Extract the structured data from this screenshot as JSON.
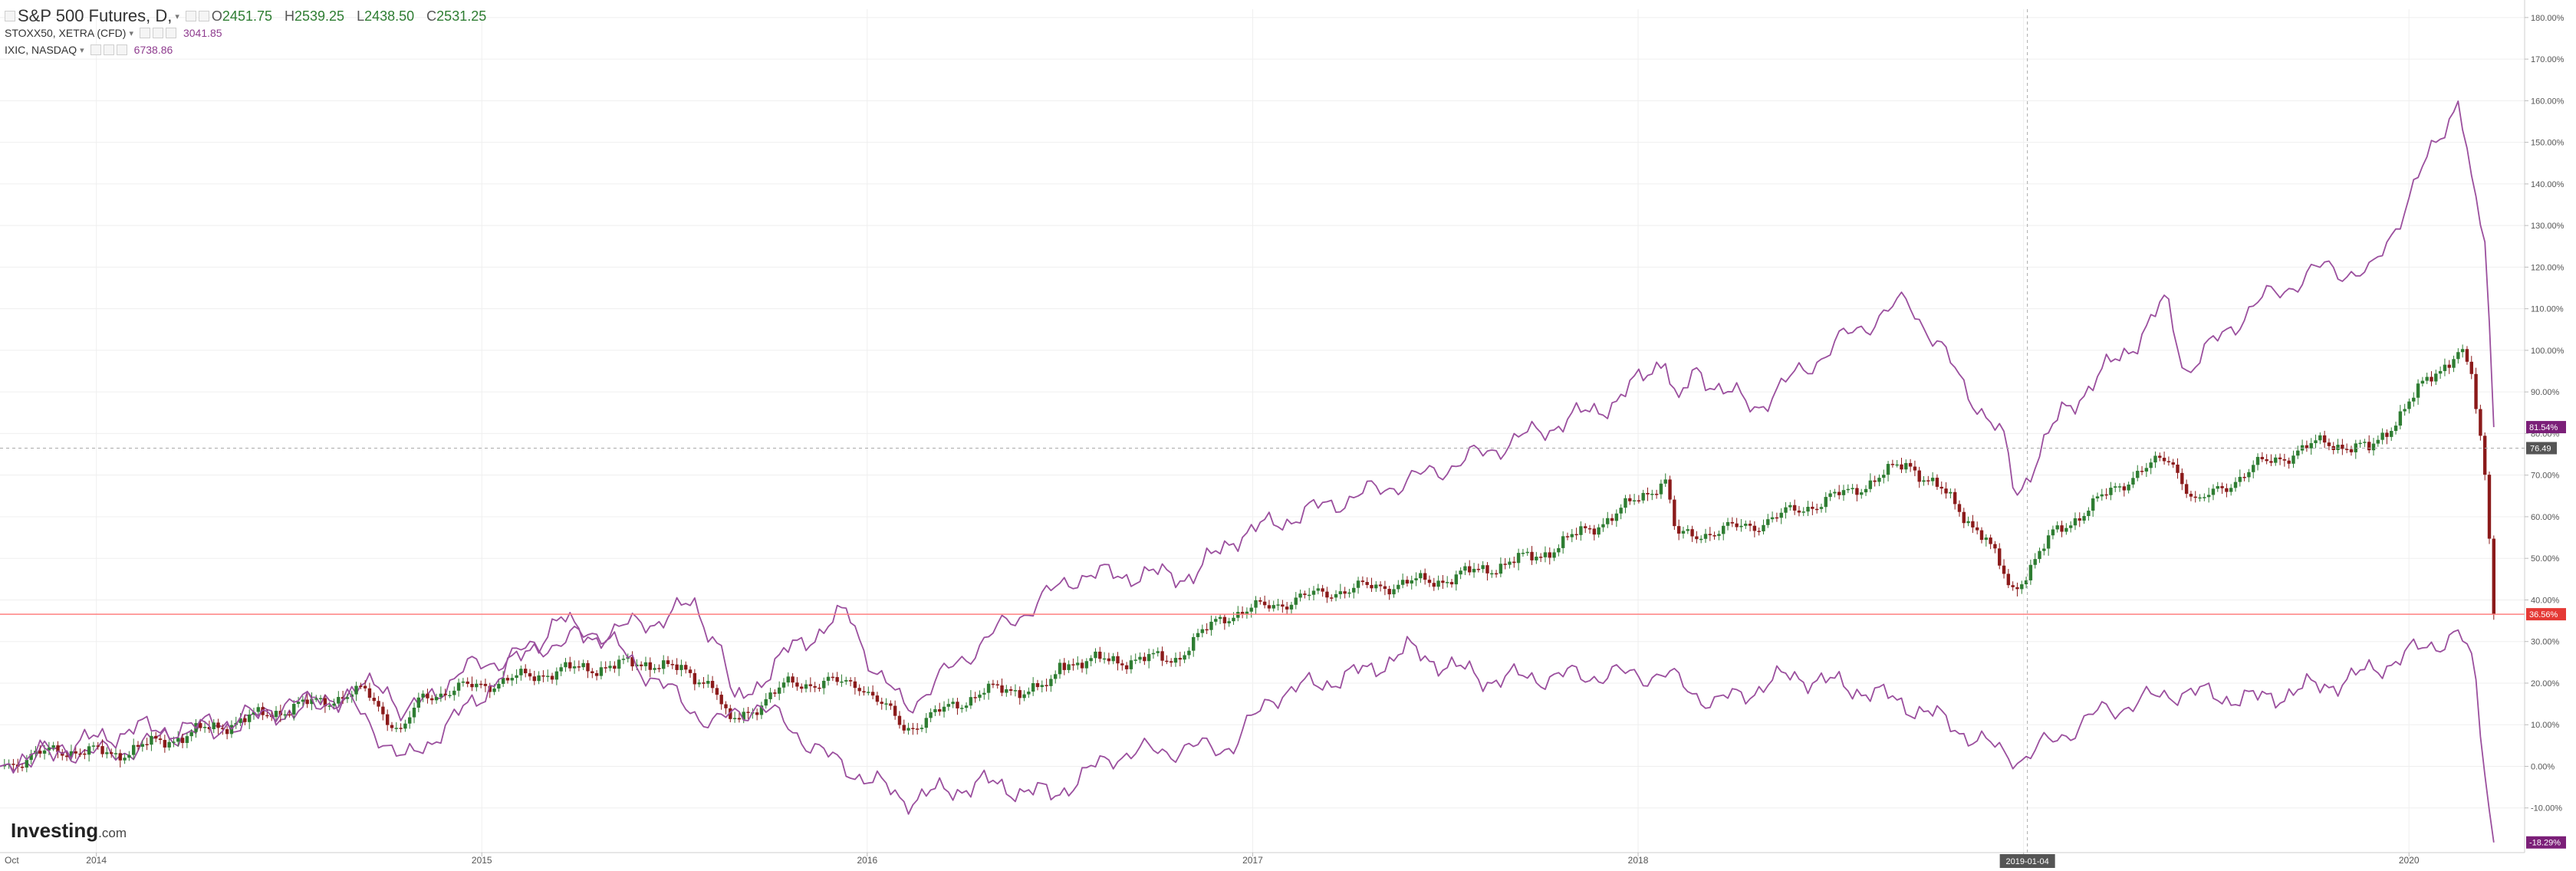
{
  "legend": {
    "main": {
      "name": "S&P 500 Futures, D,",
      "open_label": "O",
      "open": "2451.75",
      "high_label": "H",
      "high": "2539.25",
      "low_label": "L",
      "low": "2438.50",
      "close_label": "C",
      "close": "2531.25"
    },
    "compare": [
      {
        "name": "STOXX50, XETRA (CFD)",
        "value": "3041.85"
      },
      {
        "name": "IXIC, NASDAQ",
        "value": "6738.86"
      }
    ]
  },
  "logo": {
    "text": "Investing",
    "suffix": ".com"
  },
  "colors": {
    "background": "#ffffff",
    "grid": "#efefef",
    "up_candle": "#2e7d32",
    "down_candle": "#8b1a1a",
    "compare_line": "#9b4f9e",
    "current_price_line": "#ff8080",
    "axis_text": "#555555"
  },
  "chart_data": {
    "type": "line",
    "title": "S&P 500 Futures, D,",
    "y_axis_unit": "percent change from start",
    "ylim": [
      -20,
      182
    ],
    "grid": true,
    "x_start_label": "Oct",
    "x_ticks": [
      "2014",
      "2015",
      "2016",
      "2017",
      "2018",
      "2019",
      "2020"
    ],
    "y_ticks": [
      "180.00%",
      "170.00%",
      "160.00%",
      "150.00%",
      "140.00%",
      "130.00%",
      "120.00%",
      "110.00%",
      "100.00%",
      "90.00%",
      "80.00%",
      "70.00%",
      "60.00%",
      "50.00%",
      "40.00%",
      "30.00%",
      "20.00%",
      "10.00%",
      "0.00%",
      "-10.00%"
    ],
    "crosshair": {
      "x_label": "2019-01-04",
      "y_label": "76.49",
      "x": 2019.01,
      "y": 76.49
    },
    "current_level_line": 36.56,
    "series": [
      {
        "name": "IXIC, NASDAQ",
        "style": "line",
        "last_label": "81.54%",
        "points": [
          [
            2013.75,
            0
          ],
          [
            2013.9,
            4
          ],
          [
            2014.05,
            3
          ],
          [
            2014.25,
            9
          ],
          [
            2014.45,
            12
          ],
          [
            2014.6,
            16
          ],
          [
            2014.75,
            20
          ],
          [
            2014.8,
            12
          ],
          [
            2014.95,
            23
          ],
          [
            2015.2,
            30
          ],
          [
            2015.45,
            35
          ],
          [
            2015.55,
            39
          ],
          [
            2015.63,
            27
          ],
          [
            2015.65,
            14
          ],
          [
            2015.8,
            28
          ],
          [
            2015.95,
            37
          ],
          [
            2016.02,
            23
          ],
          [
            2016.1,
            14
          ],
          [
            2016.3,
            30
          ],
          [
            2016.45,
            40
          ],
          [
            2016.55,
            46
          ],
          [
            2016.85,
            46
          ],
          [
            2016.95,
            55
          ],
          [
            2017.2,
            63
          ],
          [
            2017.45,
            70
          ],
          [
            2017.7,
            79
          ],
          [
            2017.95,
            88
          ],
          [
            2018.07,
            99
          ],
          [
            2018.1,
            86
          ],
          [
            2018.15,
            95
          ],
          [
            2018.3,
            86
          ],
          [
            2018.55,
            104
          ],
          [
            2018.7,
            112
          ],
          [
            2018.78,
            101
          ],
          [
            2018.85,
            91
          ],
          [
            2018.95,
            78
          ],
          [
            2018.98,
            65
          ],
          [
            2019.1,
            85
          ],
          [
            2019.3,
            103
          ],
          [
            2019.37,
            112
          ],
          [
            2019.42,
            95
          ],
          [
            2019.6,
            111
          ],
          [
            2019.78,
            120
          ],
          [
            2019.9,
            118
          ],
          [
            2020.05,
            146
          ],
          [
            2020.13,
            161
          ],
          [
            2020.17,
            135
          ],
          [
            2020.2,
            125
          ],
          [
            2020.22,
            81.54
          ]
        ]
      },
      {
        "name": "S&P 500 Futures",
        "style": "candles",
        "last_label": "36.56%",
        "points": [
          [
            2013.75,
            0
          ],
          [
            2013.9,
            4
          ],
          [
            2014.05,
            3
          ],
          [
            2014.25,
            8
          ],
          [
            2014.5,
            14
          ],
          [
            2014.7,
            18
          ],
          [
            2014.79,
            8
          ],
          [
            2014.85,
            17
          ],
          [
            2015.2,
            23
          ],
          [
            2015.45,
            25
          ],
          [
            2015.6,
            20
          ],
          [
            2015.64,
            10
          ],
          [
            2015.8,
            20
          ],
          [
            2015.98,
            20
          ],
          [
            2016.1,
            9
          ],
          [
            2016.3,
            18
          ],
          [
            2016.48,
            19
          ],
          [
            2016.5,
            25
          ],
          [
            2016.8,
            26
          ],
          [
            2016.92,
            36
          ],
          [
            2017.2,
            42
          ],
          [
            2017.5,
            45
          ],
          [
            2017.75,
            51
          ],
          [
            2017.95,
            61
          ],
          [
            2018.07,
            69
          ],
          [
            2018.1,
            55
          ],
          [
            2018.3,
            58
          ],
          [
            2018.55,
            66
          ],
          [
            2018.7,
            73
          ],
          [
            2018.8,
            65
          ],
          [
            2018.9,
            55
          ],
          [
            2018.97,
            42
          ],
          [
            2019.08,
            56
          ],
          [
            2019.3,
            71
          ],
          [
            2019.38,
            74
          ],
          [
            2019.45,
            63
          ],
          [
            2019.6,
            72
          ],
          [
            2019.78,
            78
          ],
          [
            2019.9,
            76
          ],
          [
            2020.05,
            93
          ],
          [
            2020.13,
            100
          ],
          [
            2020.16,
            95
          ],
          [
            2020.2,
            68
          ],
          [
            2020.22,
            36.56
          ]
        ]
      },
      {
        "name": "STOXX50, XETRA (CFD)",
        "style": "line",
        "last_label": "-18.29%",
        "points": [
          [
            2013.75,
            0
          ],
          [
            2013.9,
            4
          ],
          [
            2014.1,
            9
          ],
          [
            2014.3,
            9
          ],
          [
            2014.5,
            15
          ],
          [
            2014.65,
            16
          ],
          [
            2014.8,
            1
          ],
          [
            2014.95,
            13
          ],
          [
            2015.2,
            35
          ],
          [
            2015.33,
            30
          ],
          [
            2015.5,
            17
          ],
          [
            2015.6,
            10
          ],
          [
            2015.72,
            15
          ],
          [
            2015.9,
            2
          ],
          [
            2016.1,
            -8
          ],
          [
            2016.3,
            -4
          ],
          [
            2016.48,
            -7
          ],
          [
            2016.65,
            3
          ],
          [
            2016.95,
            5
          ],
          [
            2017.05,
            17
          ],
          [
            2017.3,
            23
          ],
          [
            2017.4,
            28
          ],
          [
            2017.6,
            21
          ],
          [
            2017.9,
            22
          ],
          [
            2018.07,
            22
          ],
          [
            2018.2,
            15
          ],
          [
            2018.4,
            22
          ],
          [
            2018.6,
            18
          ],
          [
            2018.75,
            13
          ],
          [
            2018.95,
            3
          ],
          [
            2019.0,
            2
          ],
          [
            2019.2,
            13
          ],
          [
            2019.4,
            18
          ],
          [
            2019.6,
            16
          ],
          [
            2019.85,
            21
          ],
          [
            2020.0,
            27
          ],
          [
            2020.13,
            32
          ],
          [
            2020.17,
            23
          ],
          [
            2020.2,
            -5
          ],
          [
            2020.22,
            -18.29
          ]
        ]
      }
    ]
  }
}
